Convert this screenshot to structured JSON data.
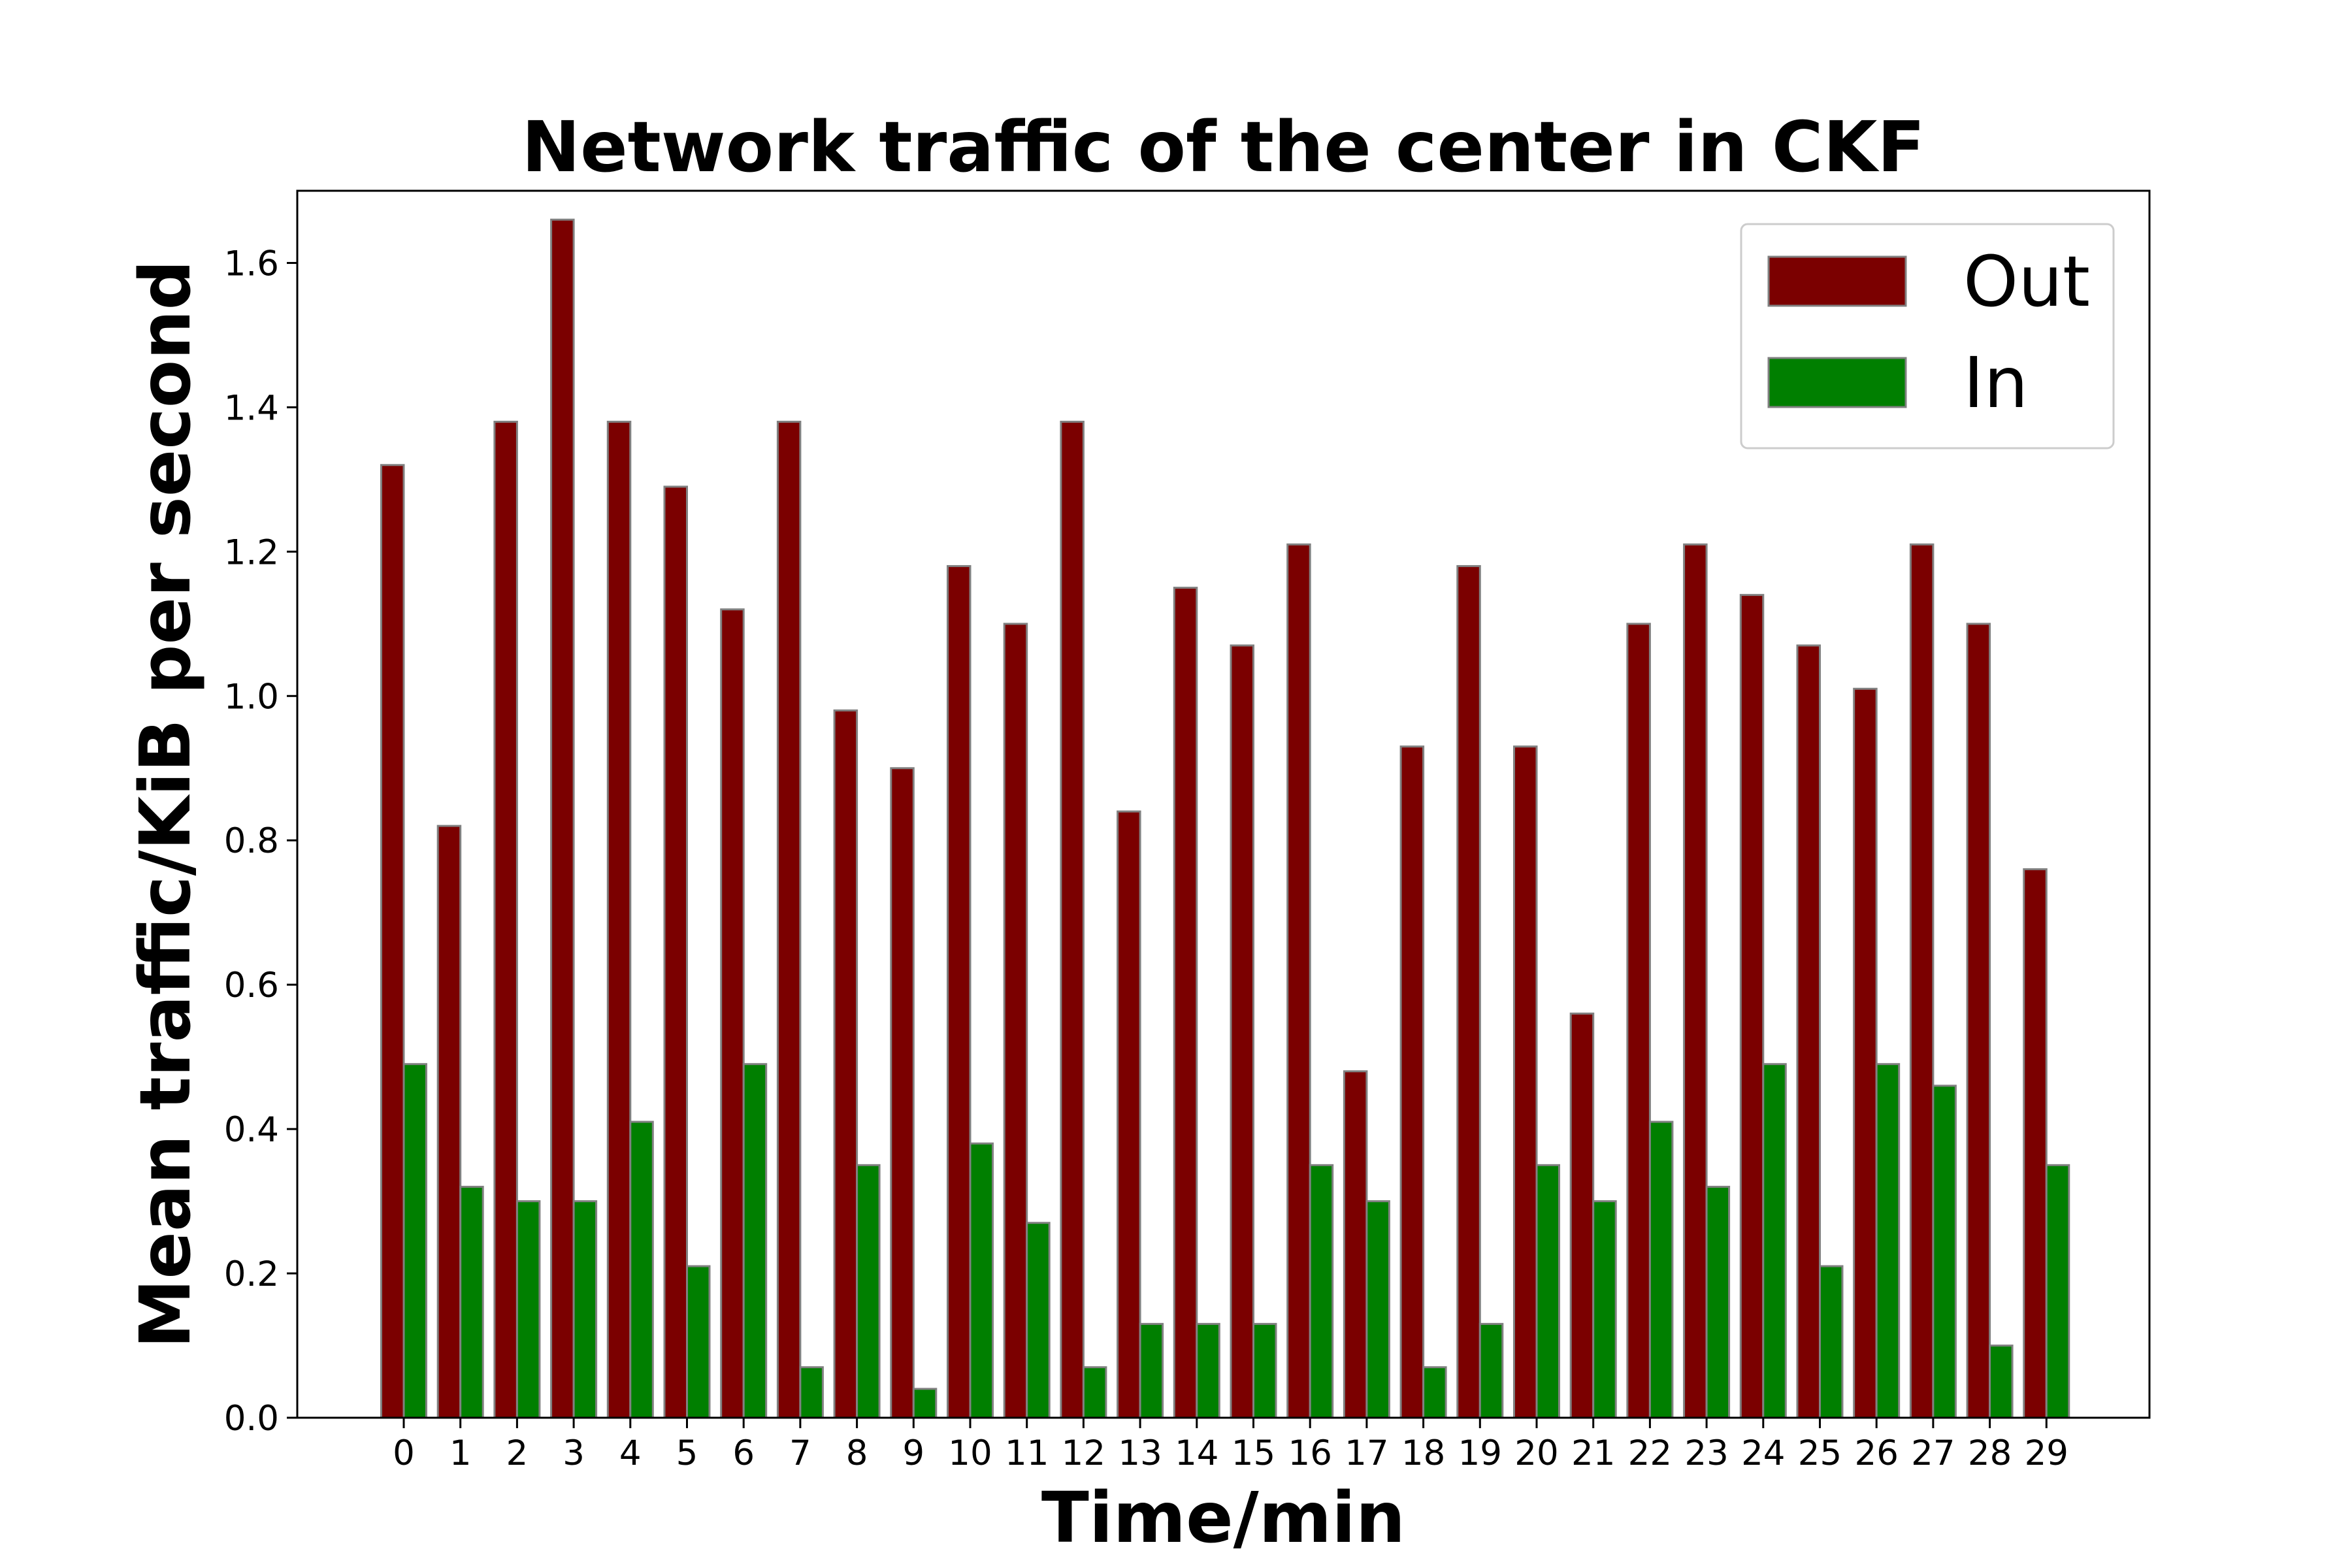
{
  "chart_data": {
    "type": "bar",
    "title": "Network traffic of the center in CKF",
    "xlabel": "Time/min",
    "ylabel": "Mean traffic/KiB per second",
    "categories": [
      "0",
      "1",
      "2",
      "3",
      "4",
      "5",
      "6",
      "7",
      "8",
      "9",
      "10",
      "11",
      "12",
      "13",
      "14",
      "15",
      "16",
      "17",
      "18",
      "19",
      "20",
      "21",
      "22",
      "23",
      "24",
      "25",
      "26",
      "27",
      "28",
      "29"
    ],
    "series": [
      {
        "name": "Out",
        "color": "#7b0000",
        "values": [
          1.32,
          0.82,
          1.38,
          1.66,
          1.38,
          1.29,
          1.12,
          1.38,
          0.98,
          0.9,
          1.18,
          1.1,
          1.38,
          0.84,
          1.15,
          1.07,
          1.21,
          0.48,
          0.93,
          1.18,
          0.93,
          0.56,
          1.1,
          1.21,
          1.14,
          1.07,
          1.01,
          1.21,
          1.1,
          0.76
        ]
      },
      {
        "name": "In",
        "color": "#007f00",
        "values": [
          0.49,
          0.32,
          0.3,
          0.3,
          0.41,
          0.21,
          0.49,
          0.07,
          0.35,
          0.04,
          0.38,
          0.27,
          0.07,
          0.13,
          0.13,
          0.13,
          0.35,
          0.3,
          0.07,
          0.13,
          0.35,
          0.3,
          0.41,
          0.32,
          0.49,
          0.21,
          0.49,
          0.46,
          0.1,
          0.35
        ]
      }
    ],
    "yticks": [
      "0.0",
      "0.2",
      "0.4",
      "0.6",
      "0.8",
      "1.0",
      "1.2",
      "1.4",
      "1.6"
    ],
    "ylim": [
      0,
      1.7
    ],
    "bar_edge_color": "#808080",
    "grid": false,
    "legend_position": "top-right"
  }
}
